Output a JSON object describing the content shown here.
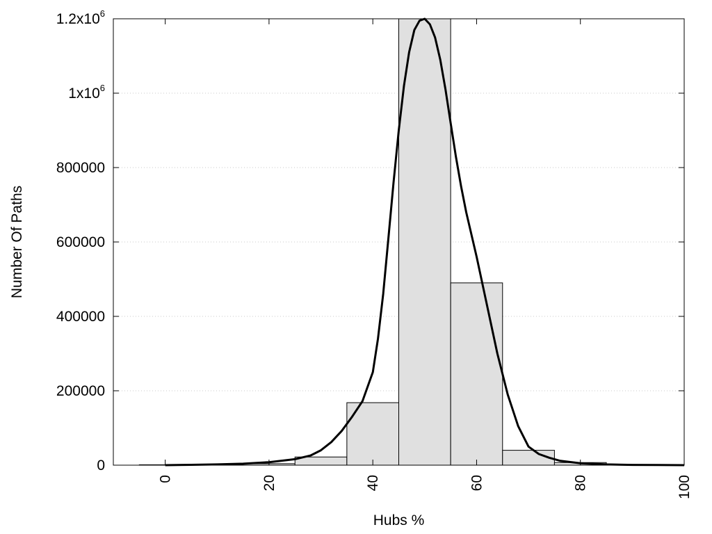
{
  "chart_data": {
    "type": "bar",
    "title": "",
    "xlabel": "Hubs %",
    "ylabel": "Number Of Paths",
    "xlim": [
      -10,
      100
    ],
    "ylim": [
      0,
      1200000
    ],
    "grid": true,
    "legend": "none",
    "xticks": [
      {
        "value": 0,
        "label": "0"
      },
      {
        "value": 20,
        "label": "20"
      },
      {
        "value": 40,
        "label": "40"
      },
      {
        "value": 60,
        "label": "60"
      },
      {
        "value": 80,
        "label": "80"
      },
      {
        "value": 100,
        "label": "100"
      }
    ],
    "yticks": [
      {
        "value": 0,
        "label": "0",
        "sup": ""
      },
      {
        "value": 200000,
        "label": "200000",
        "sup": ""
      },
      {
        "value": 400000,
        "label": "400000",
        "sup": ""
      },
      {
        "value": 600000,
        "label": "600000",
        "sup": ""
      },
      {
        "value": 800000,
        "label": "800000",
        "sup": ""
      },
      {
        "value": 1000000,
        "label": "1x10",
        "sup": "6"
      },
      {
        "value": 1200000,
        "label": "1.2x10",
        "sup": "6"
      }
    ],
    "bins": [
      {
        "start": -5,
        "end": 5,
        "value": 1000
      },
      {
        "start": 5,
        "end": 15,
        "value": 1000
      },
      {
        "start": 15,
        "end": 25,
        "value": 4000
      },
      {
        "start": 25,
        "end": 35,
        "value": 22000
      },
      {
        "start": 35,
        "end": 45,
        "value": 168000
      },
      {
        "start": 45,
        "end": 55,
        "value": 1200000
      },
      {
        "start": 55,
        "end": 65,
        "value": 490000
      },
      {
        "start": 65,
        "end": 75,
        "value": 40000
      },
      {
        "start": 75,
        "end": 85,
        "value": 7000
      },
      {
        "start": 85,
        "end": 95,
        "value": 1500
      },
      {
        "start": 95,
        "end": 105,
        "value": 500
      }
    ],
    "fit_curve": {
      "x": [
        0,
        5,
        10,
        15,
        20,
        25,
        28,
        30,
        32,
        34,
        36,
        38,
        40,
        41,
        42,
        43,
        44,
        45,
        46,
        47,
        48,
        49,
        50,
        51,
        52,
        53,
        54,
        55,
        56,
        57,
        58,
        60,
        62,
        64,
        66,
        68,
        70,
        72,
        74,
        76,
        80,
        85,
        90,
        95,
        100
      ],
      "y": [
        0,
        1000,
        2000,
        4000,
        8000,
        16000,
        26000,
        40000,
        62000,
        92000,
        130000,
        172000,
        250000,
        340000,
        460000,
        610000,
        760000,
        900000,
        1020000,
        1110000,
        1170000,
        1195000,
        1200000,
        1185000,
        1150000,
        1090000,
        1010000,
        920000,
        830000,
        750000,
        680000,
        560000,
        430000,
        300000,
        190000,
        105000,
        50000,
        30000,
        20000,
        12000,
        5000,
        2000,
        800,
        300,
        0
      ]
    }
  }
}
